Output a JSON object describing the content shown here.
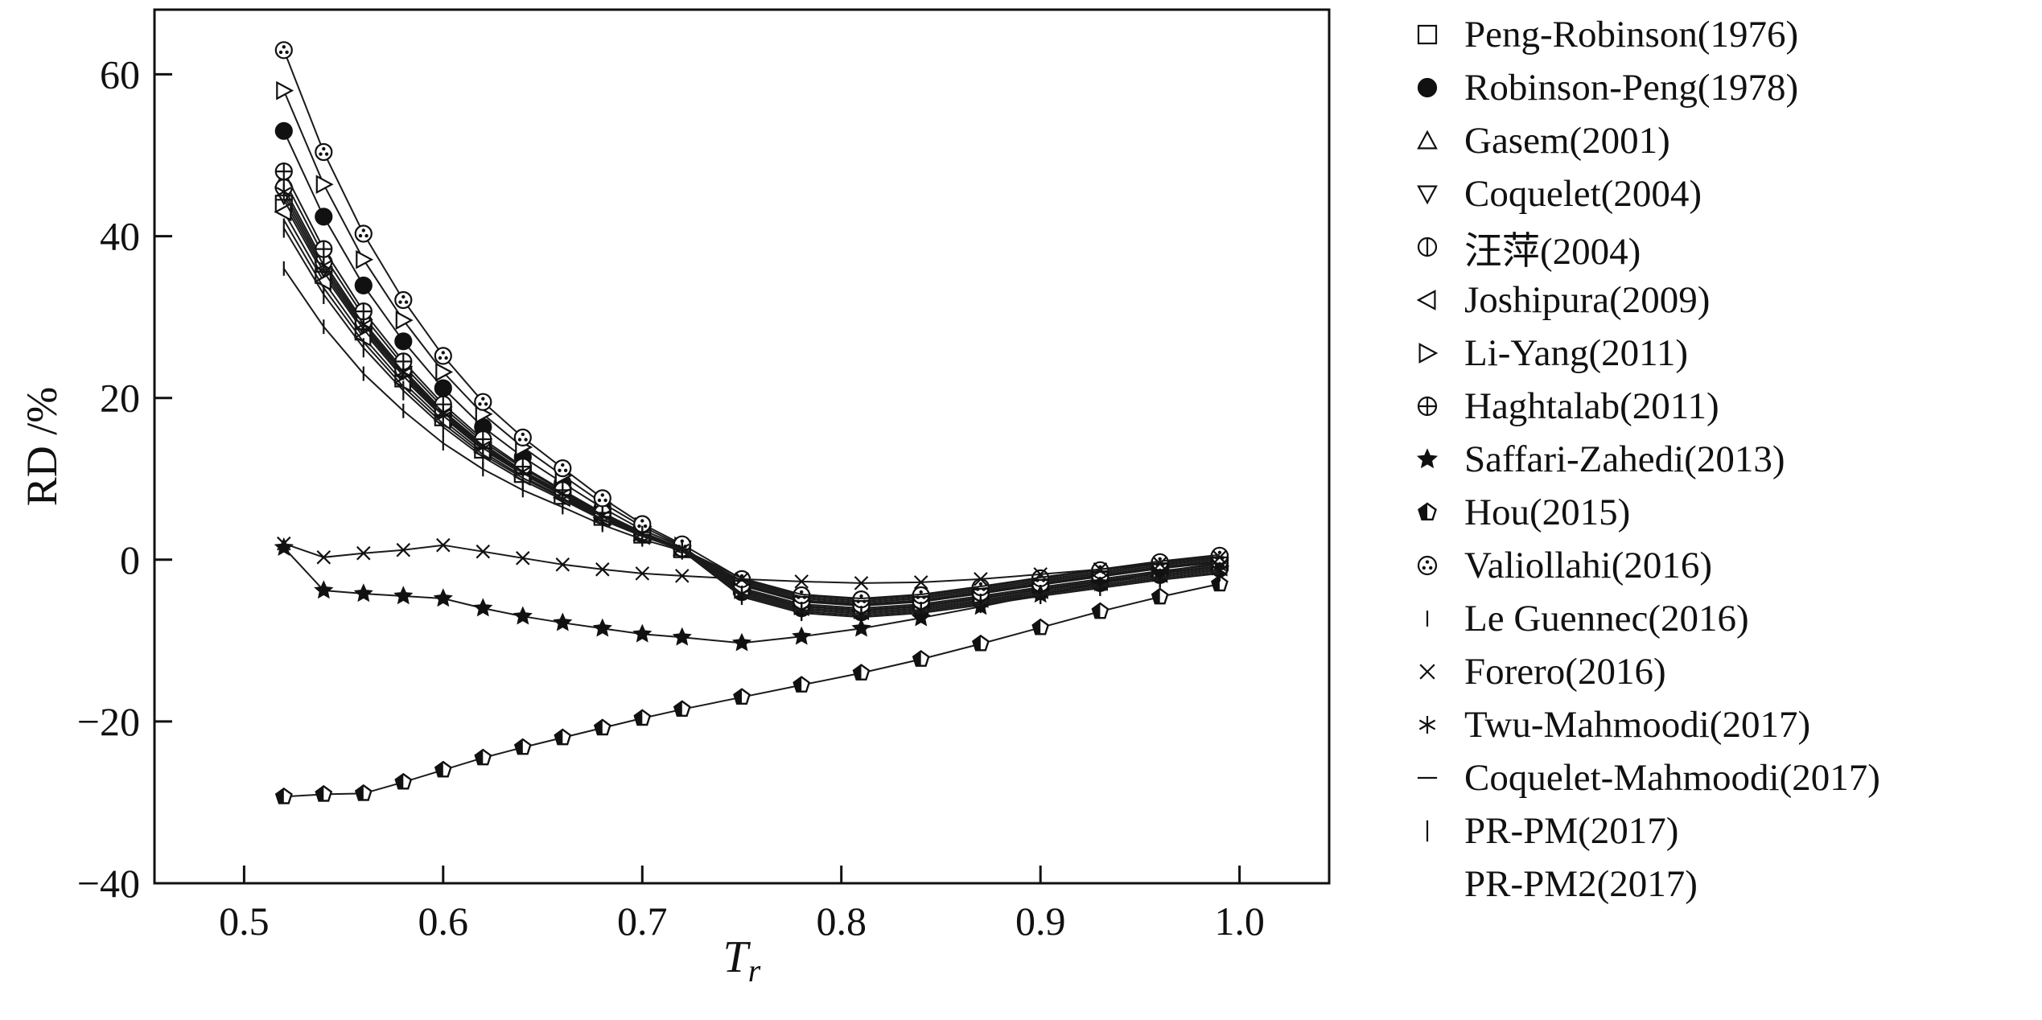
{
  "page": {
    "background": "#ffffff",
    "ink_color": "#111111"
  },
  "chart_data": {
    "type": "line",
    "title": "",
    "xlabel": "Tr",
    "xlabel_main": "T",
    "xlabel_sub": "r",
    "ylabel": "RD /%",
    "xlim": [
      0.455,
      1.045
    ],
    "ylim": [
      -40,
      68
    ],
    "grid": false,
    "legend_position": "right",
    "line_color": "#1a1a1a",
    "xticks": [
      0.5,
      0.6,
      0.7,
      0.8,
      0.9,
      1.0
    ],
    "xtick_labels": [
      "0.5",
      "0.6",
      "0.7",
      "0.8",
      "0.9",
      "1.0"
    ],
    "yticks": [
      -40,
      -20,
      0,
      20,
      40,
      60
    ],
    "ytick_labels": [
      "−40",
      "−20",
      "0",
      "20",
      "40",
      "60"
    ],
    "x": [
      0.52,
      0.54,
      0.56,
      0.58,
      0.6,
      0.62,
      0.64,
      0.66,
      0.68,
      0.7,
      0.72,
      0.75,
      0.78,
      0.81,
      0.84,
      0.87,
      0.9,
      0.93,
      0.96,
      0.99
    ],
    "series": [
      {
        "name": "Peng-Robinson(1976)",
        "marker": "square-open",
        "values": [
          44.0,
          35.2,
          28.2,
          22.4,
          17.6,
          13.6,
          10.6,
          7.9,
          5.3,
          3.1,
          1.3,
          -3.2,
          -5.2,
          -5.7,
          -5.2,
          -4.2,
          -3.1,
          -2.1,
          -1.1,
          -0.3
        ]
      },
      {
        "name": "Robinson-Peng(1978)",
        "marker": "circle-filled",
        "values": [
          53.0,
          42.4,
          33.9,
          27.0,
          21.2,
          16.4,
          12.7,
          9.5,
          6.4,
          3.7,
          1.6,
          -4.0,
          -6.0,
          -6.5,
          -6.0,
          -5.0,
          -3.9,
          -2.9,
          -1.9,
          -1.1
        ]
      },
      {
        "name": "Gasem(2001)",
        "marker": "triangle-up-open",
        "values": [
          47.0,
          37.6,
          30.1,
          24.0,
          18.8,
          14.6,
          11.3,
          8.5,
          5.6,
          3.3,
          1.4,
          -2.8,
          -4.8,
          -5.3,
          -4.8,
          -3.8,
          -2.7,
          -1.7,
          -0.7,
          0.1
        ]
      },
      {
        "name": "Coquelet(2004)",
        "marker": "triangle-down-open",
        "values": [
          45.0,
          36.0,
          28.8,
          23.0,
          18.0,
          14.0,
          10.8,
          8.1,
          5.4,
          3.2,
          1.4,
          -3.5,
          -5.5,
          -6.0,
          -5.5,
          -4.5,
          -3.4,
          -2.4,
          -1.4,
          -0.6
        ]
      },
      {
        "name": "汪萍(2004)",
        "marker": "circle-vline",
        "values": [
          46.0,
          36.8,
          29.4,
          23.5,
          18.4,
          14.3,
          11.0,
          8.3,
          5.5,
          3.2,
          1.4,
          -3.0,
          -5.0,
          -5.5,
          -5.0,
          -4.0,
          -2.9,
          -1.9,
          -0.9,
          -0.1
        ]
      },
      {
        "name": "Joshipura(2009)",
        "marker": "triangle-left-open",
        "values": [
          43.0,
          34.4,
          27.5,
          21.9,
          17.2,
          13.3,
          10.3,
          7.7,
          5.2,
          3.0,
          1.3,
          -3.8,
          -5.8,
          -6.3,
          -5.8,
          -4.8,
          -3.7,
          -2.7,
          -1.7,
          -0.9
        ]
      },
      {
        "name": "Li-Yang(2011)",
        "marker": "triangle-right-open",
        "values": [
          58.0,
          46.4,
          37.1,
          29.6,
          23.2,
          18.0,
          13.9,
          10.4,
          7.0,
          4.1,
          1.7,
          -3.7,
          -5.7,
          -6.2,
          -5.7,
          -4.7,
          -3.6,
          -2.6,
          -1.6,
          -0.8
        ]
      },
      {
        "name": "Haghtalab(2011)",
        "marker": "circle-plus",
        "values": [
          48.0,
          38.4,
          30.7,
          24.5,
          19.2,
          14.9,
          11.5,
          8.6,
          5.8,
          3.4,
          1.4,
          -3.1,
          -5.1,
          -5.6,
          -5.1,
          -4.1,
          -3.0,
          -2.0,
          -1.0,
          -0.2
        ]
      },
      {
        "name": "Saffari-Zahedi(2013)",
        "marker": "star",
        "values": [
          1.5,
          -3.8,
          -4.2,
          -4.5,
          -4.8,
          -6.0,
          -7.0,
          -7.8,
          -8.5,
          -9.2,
          -9.6,
          -10.3,
          -9.5,
          -8.5,
          -7.2,
          -5.8,
          -4.3,
          -2.9,
          -1.5,
          -0.4
        ]
      },
      {
        "name": "Hou(2015)",
        "marker": "pentagon-half",
        "values": [
          -29.3,
          -29.0,
          -28.9,
          -27.5,
          -26.0,
          -24.5,
          -23.2,
          -22.0,
          -20.8,
          -19.6,
          -18.5,
          -17.0,
          -15.5,
          -14.0,
          -12.3,
          -10.4,
          -8.4,
          -6.4,
          -4.6,
          -3.0
        ]
      },
      {
        "name": "Valiollahi(2016)",
        "marker": "circle-shaded",
        "values": [
          63.0,
          50.4,
          40.3,
          32.1,
          25.2,
          19.5,
          15.1,
          11.3,
          7.6,
          4.4,
          1.9,
          -2.4,
          -4.4,
          -4.9,
          -4.4,
          -3.4,
          -2.3,
          -1.3,
          -0.3,
          0.5
        ]
      },
      {
        "name": "Le Guennec(2016)",
        "marker": "vtick",
        "values": [
          36.0,
          28.8,
          23.0,
          18.4,
          14.4,
          11.2,
          8.6,
          6.5,
          4.3,
          2.5,
          1.1,
          -4.6,
          -6.6,
          -7.1,
          -6.6,
          -5.6,
          -4.5,
          -3.5,
          -2.5,
          -1.7
        ]
      },
      {
        "name": "Forero(2016)",
        "marker": "x-cross",
        "values": [
          2.0,
          0.3,
          0.8,
          1.2,
          1.8,
          1.0,
          0.2,
          -0.6,
          -1.2,
          -1.7,
          -2.0,
          -2.4,
          -2.7,
          -2.9,
          -2.8,
          -2.4,
          -1.8,
          -1.2,
          -0.5,
          0.3
        ]
      },
      {
        "name": "Twu-Mahmoodi(2017)",
        "marker": "asterisk",
        "values": [
          45.5,
          36.4,
          29.1,
          23.2,
          18.2,
          14.1,
          10.9,
          8.2,
          5.5,
          3.2,
          1.4,
          -4.2,
          -6.2,
          -6.7,
          -6.2,
          -5.2,
          -4.1,
          -3.1,
          -2.1,
          -1.3
        ]
      },
      {
        "name": "Coquelet-Mahmoodi(2017)",
        "marker": "hdash",
        "values": [
          44.5,
          35.6,
          28.5,
          22.7,
          17.8,
          13.8,
          10.7,
          8.0,
          5.3,
          3.1,
          1.3,
          -2.6,
          -4.6,
          -5.1,
          -4.6,
          -3.6,
          -2.5,
          -1.5,
          -0.5,
          0.3
        ]
      },
      {
        "name": "PR-PM(2017)",
        "marker": "vtick-long",
        "values": [
          41.0,
          32.8,
          26.2,
          20.9,
          16.4,
          12.7,
          9.8,
          7.4,
          4.9,
          2.9,
          1.2,
          -4.4,
          -6.4,
          -6.9,
          -6.4,
          -5.4,
          -4.3,
          -3.3,
          -2.3,
          -1.5
        ]
      },
      {
        "name": "PR-PM2(2017)",
        "marker": "square-vline",
        "values": [
          42.0,
          33.6,
          26.9,
          21.4,
          16.8,
          13.0,
          10.1,
          7.6,
          5.0,
          2.9,
          1.3,
          -2.3,
          -4.3,
          -4.8,
          -4.3,
          -3.3,
          -2.2,
          -1.2,
          -0.2,
          0.6
        ]
      }
    ]
  }
}
